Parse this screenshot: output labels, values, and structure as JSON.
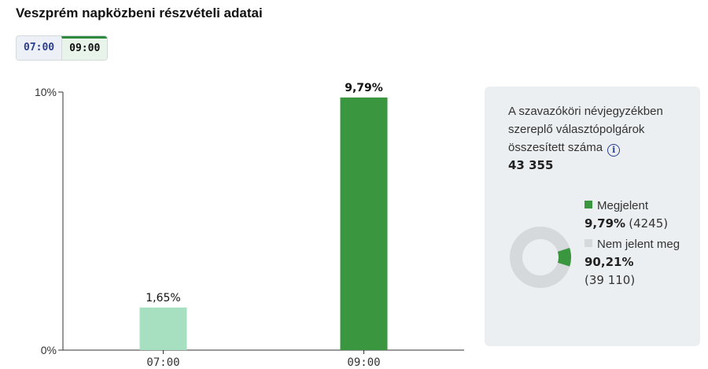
{
  "header": {
    "title": "Veszprém napközbeni részvételi adatai"
  },
  "tabs": [
    {
      "label": "07:00",
      "active": false
    },
    {
      "label": "09:00",
      "active": true
    }
  ],
  "colors": {
    "appeared": "#3a963f",
    "appeared_light": "#a6e0c1",
    "not_appeared": "#d5d9db",
    "accent": "#2b3f91"
  },
  "chart_data": {
    "type": "bar",
    "categories": [
      "07:00",
      "09:00"
    ],
    "values": [
      1.65,
      9.79
    ],
    "data_labels": [
      "1,65%",
      "9,79%"
    ],
    "y_ticks": [
      {
        "value": 0,
        "label": "0%"
      },
      {
        "value": 10,
        "label": "10%"
      }
    ],
    "ylim": [
      0,
      10
    ],
    "grid": false
  },
  "info": {
    "label": "A szavazóköri névjegyzékben szereplő választópolgárok összesített száma",
    "icon": "info-icon",
    "icon_glyph": "i",
    "total": "43 355"
  },
  "donut": {
    "appeared_share": 0.0979
  },
  "legend": {
    "appeared": {
      "label": "Megjelent",
      "pct": "9,79%",
      "count": "(4245)"
    },
    "not_appeared": {
      "label": "Nem jelent meg",
      "pct": "90,21%",
      "count": "(39 110)"
    }
  }
}
